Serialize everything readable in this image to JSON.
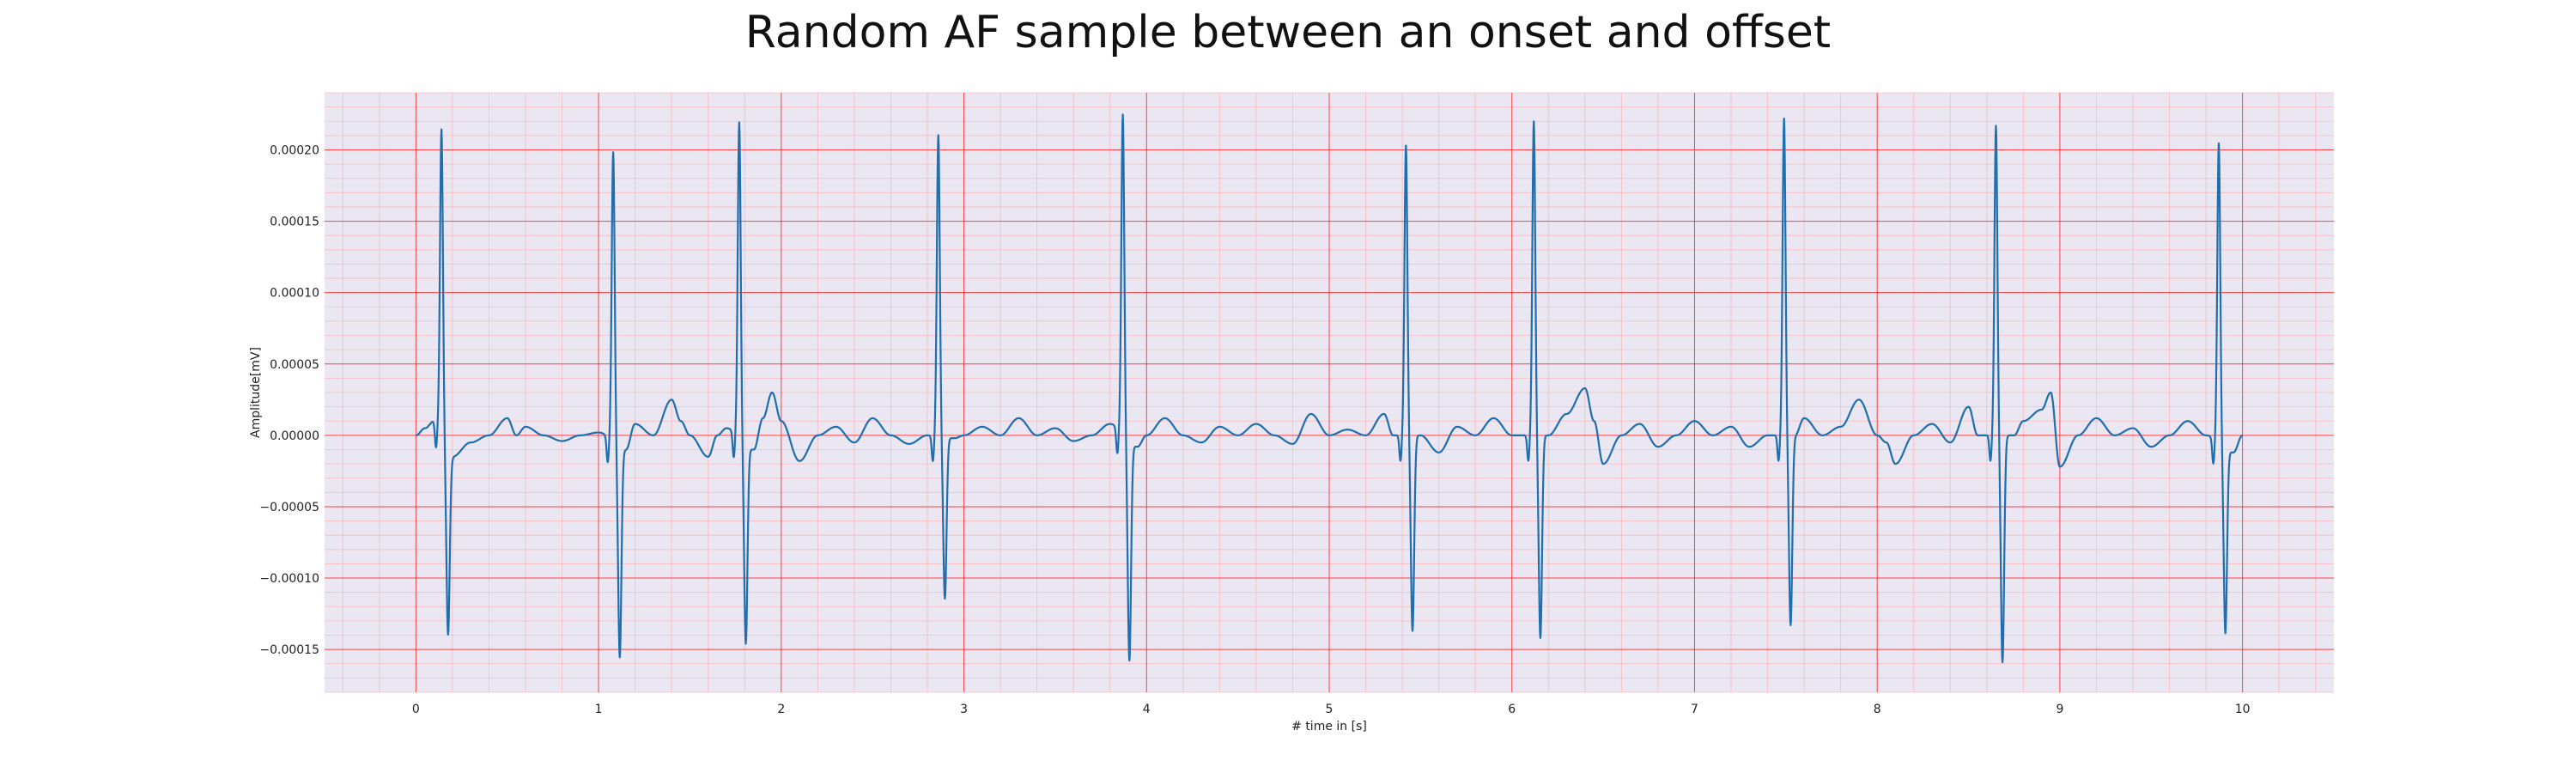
{
  "chart_data": {
    "type": "line",
    "title": "Random AF sample between an onset and offset",
    "xlabel": "# time in [s]",
    "ylabel": "Amplitude[mV]",
    "xlim": [
      -0.5,
      10.5
    ],
    "ylim": [
      -0.00018,
      0.00024
    ],
    "xticks": [
      0,
      1,
      2,
      3,
      4,
      5,
      6,
      7,
      8,
      9,
      10
    ],
    "xtick_labels": [
      "0",
      "1",
      "2",
      "3",
      "4",
      "5",
      "6",
      "7",
      "8",
      "9",
      "10"
    ],
    "yticks": [
      -0.00015,
      -0.0001,
      -5e-05,
      0.0,
      5e-05,
      0.0001,
      0.00015,
      0.0002
    ],
    "ytick_labels": [
      "−0.00015",
      "−0.00010",
      "−0.00005",
      "0.00000",
      "0.00005",
      "0.00010",
      "0.00015",
      "0.00020"
    ],
    "grid": {
      "major": true,
      "minor": true,
      "major_color": "#ff0000",
      "minor_color": "#ffaaaa"
    },
    "background_color": "#eae6f2",
    "line_color": "#1f6ead",
    "beats": [
      {
        "t": 0.14,
        "peak": 0.000213,
        "trough": -0.000128
      },
      {
        "t": 1.08,
        "peak": 0.000203,
        "trough": -0.000147
      },
      {
        "t": 1.77,
        "peak": 0.000221,
        "trough": -0.000139
      },
      {
        "t": 2.86,
        "peak": 0.000211,
        "trough": -0.000113
      },
      {
        "t": 3.87,
        "peak": 0.000224,
        "trough": -0.000153
      },
      {
        "t": 5.42,
        "peak": 0.000203,
        "trough": -0.000137
      },
      {
        "t": 6.12,
        "peak": 0.00022,
        "trough": -0.000142
      },
      {
        "t": 7.49,
        "peak": 0.000222,
        "trough": -0.000133
      },
      {
        "t": 8.65,
        "peak": 0.000217,
        "trough": -0.000159
      },
      {
        "t": 9.87,
        "peak": 0.00021,
        "trough": -0.000129
      }
    ],
    "series": [
      {
        "x": [
          0.0,
          0.05,
          0.1,
          0.2,
          0.3,
          0.4,
          0.5,
          0.55,
          0.6,
          0.7,
          0.8,
          0.9,
          1.0,
          1.15,
          1.2,
          1.3,
          1.4,
          1.45,
          1.5,
          1.6,
          1.65,
          1.7,
          1.85,
          1.9,
          1.95,
          2.0,
          2.1,
          2.2,
          2.3,
          2.4,
          2.5,
          2.6,
          2.7,
          2.8,
          2.95,
          3.0,
          3.1,
          3.2,
          3.3,
          3.4,
          3.5,
          3.6,
          3.7,
          3.8,
          3.95,
          4.0,
          4.1,
          4.2,
          4.3,
          4.4,
          4.5,
          4.6,
          4.7,
          4.8,
          4.9,
          5.0,
          5.1,
          5.2,
          5.3,
          5.35,
          5.5,
          5.6,
          5.7,
          5.8,
          5.9,
          6.0,
          6.2,
          6.3,
          6.4,
          6.45,
          6.5,
          6.6,
          6.7,
          6.8,
          6.9,
          7.0,
          7.1,
          7.2,
          7.3,
          7.4,
          7.55,
          7.6,
          7.7,
          7.8,
          7.9,
          8.0,
          8.05,
          8.1,
          8.2,
          8.3,
          8.4,
          8.5,
          8.55,
          8.75,
          8.8,
          8.9,
          8.95,
          9.0,
          9.1,
          9.2,
          9.3,
          9.4,
          9.5,
          9.6,
          9.7,
          9.8,
          9.95,
          10.0
        ],
        "y": [
          0.0,
          5e-06,
          1e-05,
          -1.5e-05,
          -5e-06,
          0.0,
          1.2e-05,
          0.0,
          6e-06,
          0.0,
          -4e-06,
          0.0,
          2e-06,
          -1e-05,
          8e-06,
          0.0,
          2.5e-05,
          1e-05,
          0.0,
          -1.5e-05,
          0.0,
          5e-06,
          -1e-05,
          1.2e-05,
          3e-05,
          1e-05,
          -1.8e-05,
          0.0,
          6e-06,
          -5e-06,
          1.2e-05,
          0.0,
          -6e-06,
          0.0,
          -2e-06,
          0.0,
          6e-06,
          0.0,
          1.2e-05,
          0.0,
          5e-06,
          -4e-06,
          0.0,
          8e-06,
          -8e-06,
          0.0,
          1.2e-05,
          0.0,
          -5e-06,
          6e-06,
          0.0,
          8e-06,
          0.0,
          -6e-06,
          1.5e-05,
          0.0,
          4e-06,
          0.0,
          1.5e-05,
          0.0,
          0.0,
          -1.2e-05,
          6e-06,
          0.0,
          1.2e-05,
          0.0,
          0.0,
          1.5e-05,
          3.3e-05,
          1e-05,
          -2e-05,
          0.0,
          8e-06,
          -8e-06,
          0.0,
          1e-05,
          0.0,
          6e-06,
          -8e-06,
          0.0,
          0.0,
          1.2e-05,
          0.0,
          6e-06,
          2.5e-05,
          0.0,
          -5e-06,
          -2e-05,
          0.0,
          8e-06,
          -5e-06,
          2e-05,
          0.0,
          0.0,
          1e-05,
          1.8e-05,
          3e-05,
          -2.2e-05,
          0.0,
          1.2e-05,
          0.0,
          5e-06,
          -8e-06,
          0.0,
          1e-05,
          0.0,
          -1.2e-05,
          0.0
        ]
      }
    ]
  }
}
